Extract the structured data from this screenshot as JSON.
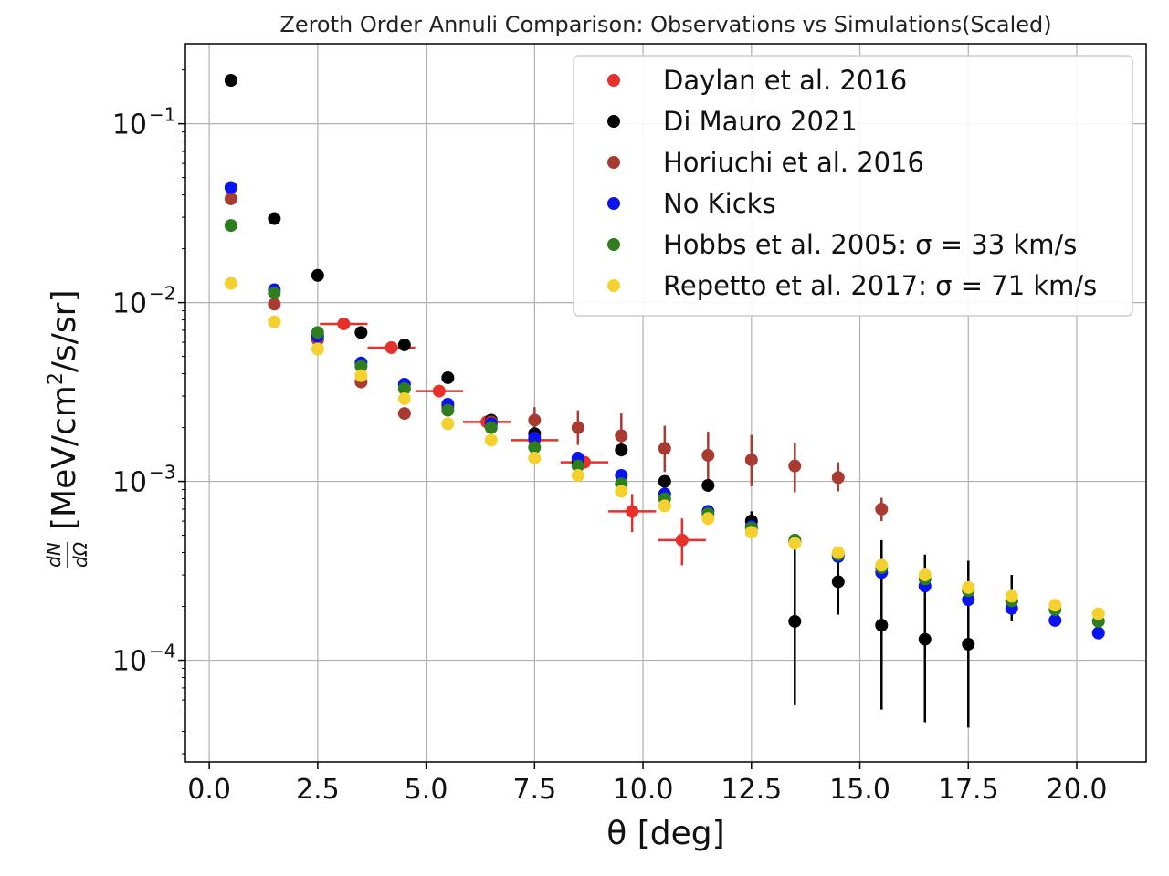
{
  "chart_data": {
    "type": "scatter",
    "title": "Zeroth Order Annuli Comparison: Observations vs Simulations(Scaled)",
    "xlabel": "θ [deg]",
    "ylabel_prefix": "[MeV/cm",
    "ylabel_sup": "2",
    "ylabel_suffix": "/s/sr]",
    "ylabel_frac_num": "dN",
    "ylabel_frac_den": "dΩ",
    "xlim": [
      -0.55,
      21.6
    ],
    "ylim": [
      2.7e-05,
      0.28
    ],
    "yscale": "log",
    "grid": true,
    "legend_position": "top-right",
    "x_ticks": [
      {
        "value": 0.0,
        "label": "0.0"
      },
      {
        "value": 2.5,
        "label": "2.5"
      },
      {
        "value": 5.0,
        "label": "5.0"
      },
      {
        "value": 7.5,
        "label": "7.5"
      },
      {
        "value": 10.0,
        "label": "10.0"
      },
      {
        "value": 12.5,
        "label": "12.5"
      },
      {
        "value": 15.0,
        "label": "15.0"
      },
      {
        "value": 17.5,
        "label": "17.5"
      },
      {
        "value": 20.0,
        "label": "20.0"
      }
    ],
    "y_ticks": [
      {
        "value": 0.1,
        "base": "10",
        "exp": "−1"
      },
      {
        "value": 0.01,
        "base": "10",
        "exp": "−2"
      },
      {
        "value": 0.001,
        "base": "10",
        "exp": "−3"
      },
      {
        "value": 0.0001,
        "base": "10",
        "exp": "−4"
      }
    ],
    "series": [
      {
        "name": "Daylan et al. 2016",
        "color": "#e8302a",
        "marker_size": 7,
        "points": [
          {
            "x": 3.1,
            "y": 0.0076,
            "xerr": 0.55
          },
          {
            "x": 4.2,
            "y": 0.0056,
            "xerr": 0.55
          },
          {
            "x": 5.3,
            "y": 0.0032,
            "xerr": 0.55
          },
          {
            "x": 6.4,
            "y": 0.00215,
            "xerr": 0.55
          },
          {
            "x": 7.5,
            "y": 0.0017,
            "xerr": 0.55
          },
          {
            "x": 8.65,
            "y": 0.00128,
            "xerr": 0.55
          },
          {
            "x": 9.75,
            "y": 0.00068,
            "xerr": 0.55,
            "ylo": 0.00052,
            "yhi": 0.00085
          },
          {
            "x": 10.9,
            "y": 0.00047,
            "xerr": 0.55,
            "ylo": 0.00034,
            "yhi": 0.00062
          }
        ]
      },
      {
        "name": "Di Mauro 2021",
        "color": "#000000",
        "marker_size": 7,
        "points": [
          {
            "x": 0.5,
            "y": 0.175
          },
          {
            "x": 1.5,
            "y": 0.0295
          },
          {
            "x": 2.5,
            "y": 0.0142
          },
          {
            "x": 3.5,
            "y": 0.0068
          },
          {
            "x": 4.5,
            "y": 0.0058
          },
          {
            "x": 5.5,
            "y": 0.0038
          },
          {
            "x": 6.5,
            "y": 0.0022
          },
          {
            "x": 7.5,
            "y": 0.00185
          },
          {
            "x": 8.5,
            "y": 0.00128
          },
          {
            "x": 9.5,
            "y": 0.0015
          },
          {
            "x": 10.5,
            "y": 0.001
          },
          {
            "x": 11.5,
            "y": 0.00095
          },
          {
            "x": 12.5,
            "y": 0.0006,
            "ylo": 0.00055,
            "yhi": 0.00068
          },
          {
            "x": 13.5,
            "y": 0.000165,
            "ylo": 5.6e-05,
            "yhi": 0.00049
          },
          {
            "x": 14.5,
            "y": 0.000275,
            "ylo": 0.00018,
            "yhi": 0.00037
          },
          {
            "x": 15.5,
            "y": 0.000157,
            "ylo": 5.3e-05,
            "yhi": 0.00047
          },
          {
            "x": 16.5,
            "y": 0.000131,
            "ylo": 4.5e-05,
            "yhi": 0.00039
          },
          {
            "x": 17.5,
            "y": 0.000123,
            "ylo": 4.2e-05,
            "yhi": 0.00036
          },
          {
            "x": 18.5,
            "y": 0.000215,
            "ylo": 0.000165,
            "yhi": 0.0003
          }
        ]
      },
      {
        "name": "Horiuchi et al. 2016",
        "color": "#a83a32",
        "marker_size": 7,
        "points": [
          {
            "x": 0.5,
            "y": 0.038
          },
          {
            "x": 1.5,
            "y": 0.0098
          },
          {
            "x": 2.5,
            "y": 0.0062
          },
          {
            "x": 3.5,
            "y": 0.0036
          },
          {
            "x": 4.5,
            "y": 0.0024
          },
          {
            "x": 5.5,
            "y": 0.0026
          },
          {
            "x": 6.5,
            "y": 0.00215
          },
          {
            "x": 7.5,
            "y": 0.0022,
            "ylo": 0.0019,
            "yhi": 0.0026
          },
          {
            "x": 8.5,
            "y": 0.002,
            "ylo": 0.0016,
            "yhi": 0.0025
          },
          {
            "x": 9.5,
            "y": 0.0018,
            "ylo": 0.00138,
            "yhi": 0.0024
          },
          {
            "x": 10.5,
            "y": 0.00153,
            "ylo": 0.00113,
            "yhi": 0.00205
          },
          {
            "x": 11.5,
            "y": 0.0014,
            "ylo": 0.00102,
            "yhi": 0.0019
          },
          {
            "x": 12.5,
            "y": 0.00132,
            "ylo": 0.00094,
            "yhi": 0.00182
          },
          {
            "x": 13.5,
            "y": 0.00122,
            "ylo": 0.00087,
            "yhi": 0.00165
          },
          {
            "x": 14.5,
            "y": 0.00105,
            "ylo": 0.00088,
            "yhi": 0.00128
          },
          {
            "x": 15.5,
            "y": 0.0007,
            "ylo": 0.0006,
            "yhi": 0.00081
          }
        ]
      },
      {
        "name": "No Kicks",
        "color": "#0a14ee",
        "marker_size": 7,
        "points": [
          {
            "x": 0.5,
            "y": 0.044
          },
          {
            "x": 1.5,
            "y": 0.0118
          },
          {
            "x": 2.5,
            "y": 0.0065
          },
          {
            "x": 3.5,
            "y": 0.0046
          },
          {
            "x": 4.5,
            "y": 0.0035
          },
          {
            "x": 5.5,
            "y": 0.0027
          },
          {
            "x": 6.5,
            "y": 0.0021
          },
          {
            "x": 7.5,
            "y": 0.00175
          },
          {
            "x": 8.5,
            "y": 0.00135
          },
          {
            "x": 9.5,
            "y": 0.00108
          },
          {
            "x": 10.5,
            "y": 0.00085
          },
          {
            "x": 11.5,
            "y": 0.00068
          },
          {
            "x": 12.5,
            "y": 0.00056
          },
          {
            "x": 13.5,
            "y": 0.00046
          },
          {
            "x": 14.5,
            "y": 0.00038
          },
          {
            "x": 15.5,
            "y": 0.00031
          },
          {
            "x": 16.5,
            "y": 0.00026
          },
          {
            "x": 17.5,
            "y": 0.000218
          },
          {
            "x": 18.5,
            "y": 0.000195
          },
          {
            "x": 19.5,
            "y": 0.000167
          },
          {
            "x": 20.5,
            "y": 0.000142
          }
        ]
      },
      {
        "name": "Hobbs et al. 2005: σ = 33 km/s",
        "color": "#2e7d1e",
        "marker_size": 7,
        "points": [
          {
            "x": 0.5,
            "y": 0.027
          },
          {
            "x": 1.5,
            "y": 0.0113
          },
          {
            "x": 2.5,
            "y": 0.0068
          },
          {
            "x": 3.5,
            "y": 0.0044
          },
          {
            "x": 4.5,
            "y": 0.0033
          },
          {
            "x": 5.5,
            "y": 0.0025
          },
          {
            "x": 6.5,
            "y": 0.002
          },
          {
            "x": 7.5,
            "y": 0.00155
          },
          {
            "x": 8.5,
            "y": 0.00122
          },
          {
            "x": 9.5,
            "y": 0.00097
          },
          {
            "x": 10.5,
            "y": 0.0008
          },
          {
            "x": 11.5,
            "y": 0.00066
          },
          {
            "x": 12.5,
            "y": 0.00055
          },
          {
            "x": 13.5,
            "y": 0.00047
          },
          {
            "x": 14.5,
            "y": 0.00039
          },
          {
            "x": 15.5,
            "y": 0.00033
          },
          {
            "x": 16.5,
            "y": 0.000285
          },
          {
            "x": 17.5,
            "y": 0.000245
          },
          {
            "x": 18.5,
            "y": 0.000215
          },
          {
            "x": 19.5,
            "y": 0.000192
          },
          {
            "x": 20.5,
            "y": 0.000165
          }
        ]
      },
      {
        "name": "Repetto et al. 2017: σ = 71 km/s",
        "color": "#f5d130",
        "marker_size": 7,
        "points": [
          {
            "x": 0.5,
            "y": 0.0128
          },
          {
            "x": 1.5,
            "y": 0.0078
          },
          {
            "x": 2.5,
            "y": 0.0055
          },
          {
            "x": 3.5,
            "y": 0.0039
          },
          {
            "x": 4.5,
            "y": 0.0029
          },
          {
            "x": 5.5,
            "y": 0.0021
          },
          {
            "x": 6.5,
            "y": 0.0017
          },
          {
            "x": 7.5,
            "y": 0.00135
          },
          {
            "x": 8.5,
            "y": 0.00108
          },
          {
            "x": 9.5,
            "y": 0.00088
          },
          {
            "x": 10.5,
            "y": 0.00073
          },
          {
            "x": 11.5,
            "y": 0.00062
          },
          {
            "x": 12.5,
            "y": 0.00052
          },
          {
            "x": 13.5,
            "y": 0.00045
          },
          {
            "x": 14.5,
            "y": 0.0004
          },
          {
            "x": 15.5,
            "y": 0.00034
          },
          {
            "x": 16.5,
            "y": 0.0003
          },
          {
            "x": 17.5,
            "y": 0.000255
          },
          {
            "x": 18.5,
            "y": 0.000228
          },
          {
            "x": 19.5,
            "y": 0.000203
          },
          {
            "x": 20.5,
            "y": 0.000182
          }
        ]
      }
    ]
  }
}
